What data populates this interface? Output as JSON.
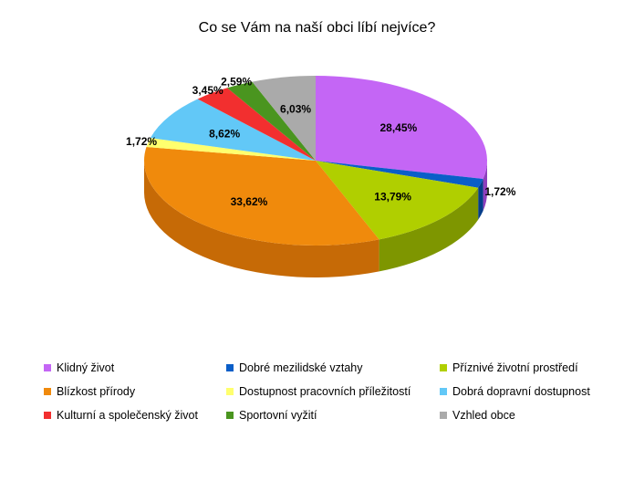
{
  "chart_data": {
    "type": "pie",
    "title": "Co se Vám na naší obci líbí nejvíce?",
    "three_d": true,
    "legend_position": "bottom",
    "start_angle_deg": -90,
    "slices": [
      {
        "label": "Klidný život",
        "value": 28.45,
        "value_label": "28,45%",
        "color": "#c466f5",
        "side": "#8e3fbd"
      },
      {
        "label": "Dobré mezilidské vztahy",
        "value": 1.72,
        "value_label": "1,72%",
        "color": "#0a5ec8",
        "side": "#063e8a"
      },
      {
        "label": "Příznivé životní prostředí",
        "value": 13.79,
        "value_label": "13,79%",
        "color": "#b0cf00",
        "side": "#7e9600"
      },
      {
        "label": "Blízkost přírody",
        "value": 33.62,
        "value_label": "33,62%",
        "color": "#f08a0c",
        "side": "#c66a06"
      },
      {
        "label": "Dostupnost pracovních příležitostí",
        "value": 1.72,
        "value_label": "1,72%",
        "color": "#ffff6e",
        "side": "#c9c94c"
      },
      {
        "label": "Dobrá dopravní dostupnost",
        "value": 8.62,
        "value_label": "8,62%",
        "color": "#62c8f7",
        "side": "#3c95bd"
      },
      {
        "label": "Kulturní a společenský život",
        "value": 3.45,
        "value_label": "3,45%",
        "color": "#f22f2f",
        "side": "#b01f1f"
      },
      {
        "label": "Sportovní vyžití",
        "value": 2.59,
        "value_label": "2,59%",
        "color": "#4a951f",
        "side": "#326a13"
      },
      {
        "label": "Vzhled obce",
        "value": 6.03,
        "value_label": "6,03%",
        "color": "#aaaaaa",
        "side": "#7a7a7a"
      }
    ]
  }
}
